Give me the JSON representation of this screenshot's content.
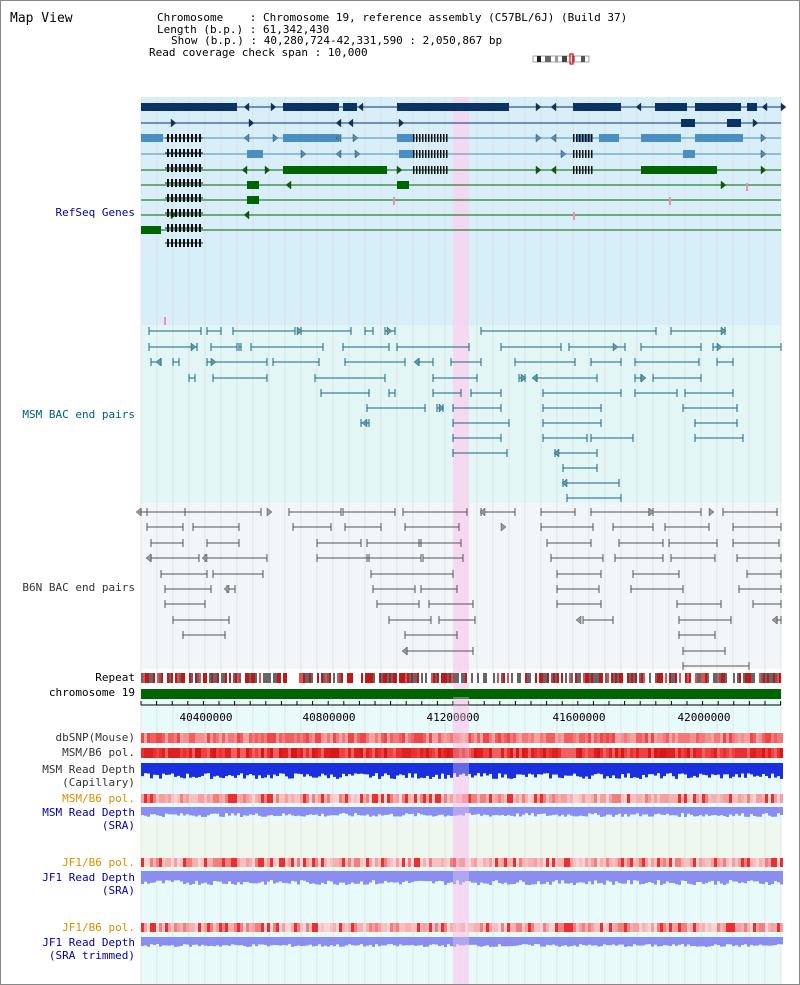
{
  "title": "Map View",
  "info": {
    "chromosome_key": "Chromosome",
    "chromosome_val": "Chromosome 19, reference assembly (C57BL/6J) (Build 37)",
    "length_key": "Length (b.p.)",
    "length_val": "61,342,430",
    "show_key": "Show (b.p.)",
    "show_val": "40,280,724-42,331,590 : 2,050,867 bp",
    "span_key": "Read coverage check span",
    "span_val": "10,000"
  },
  "tracks": {
    "refseq": "RefSeq Genes",
    "msm_bac": "MSM BAC end pairs",
    "b6n_bac": "B6N BAC end pairs",
    "repeat": "Repeat",
    "chromosome": "chromosome 19",
    "dbsnp": "dbSNP(Mouse)",
    "msm_b6_pol_a": "MSM/B6 pol.",
    "msm_depth_cap_1": "MSM Read Depth",
    "msm_depth_cap_2": "(Capillary)",
    "msm_b6_pol_b": "MSM/B6 pol.",
    "msm_depth_sra_1": "MSM Read Depth",
    "msm_depth_sra_2": "(SRA)",
    "jf1_b6_pol_a": "JF1/B6 pol.",
    "jf1_depth_sra_1": "JF1 Read Depth",
    "jf1_depth_sra_2": "(SRA)",
    "jf1_b6_pol_b": "JF1/B6 pol.",
    "jf1_depth_trim_1": "JF1 Read Depth",
    "jf1_depth_trim_2": "(SRA trimmed)"
  },
  "ruler": {
    "ticks": [
      "40400000",
      "40800000",
      "41200000",
      "41600000",
      "42000000"
    ]
  },
  "colors": {
    "refseq_bg": "#d8eef8",
    "msm_bg": "#e2f6f6",
    "b6n_bg": "#f2f6f8",
    "gene_dark": "#0a3264",
    "gene_mid": "#4a8fbf",
    "gene_green": "#006400",
    "highlight": "#f7d4f0",
    "label_blue": "#0000aa",
    "label_teal": "#006070",
    "label_gray": "#333333",
    "label_orange": "#d89000",
    "snp_red": "#e83030",
    "depth_blue": "#1a2fe0",
    "depth_lavender": "#8a8ef0"
  },
  "chromosome_icon": "chromosome-ideogram-icon"
}
